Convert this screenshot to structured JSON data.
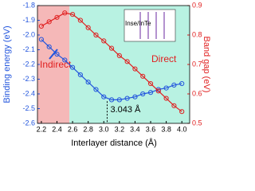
{
  "chart_data": {
    "type": "line",
    "xlabel": "Interlayer distance (Å)",
    "ylabel": "Binding energy (eV)",
    "y2label": "Band gap (eV)",
    "x": [
      2.2,
      2.3,
      2.4,
      2.5,
      2.6,
      2.7,
      2.8,
      2.9,
      3.0,
      3.1,
      3.2,
      3.3,
      3.4,
      3.5,
      3.6,
      3.7,
      3.8,
      3.9,
      4.0
    ],
    "series": [
      {
        "name": "Binding energy",
        "color": "#2255dd",
        "values": [
          -2.03,
          -2.08,
          -2.13,
          -2.17,
          -2.22,
          -2.27,
          -2.32,
          -2.37,
          -2.42,
          -2.44,
          -2.44,
          -2.43,
          -2.42,
          -2.4,
          -2.39,
          -2.37,
          -2.36,
          -2.34,
          -2.33
        ]
      },
      {
        "name": "Band gap",
        "color": "#e02020",
        "axis": "y2",
        "values": [
          0.83,
          0.845,
          0.86,
          0.875,
          0.87,
          0.85,
          0.825,
          0.8,
          0.78,
          0.755,
          0.73,
          0.71,
          0.685,
          0.66,
          0.635,
          0.61,
          0.585,
          0.56,
          0.54
        ]
      }
    ],
    "regions": [
      {
        "name": "Indirect",
        "xlim": [
          2.15,
          2.56
        ],
        "color": "#f5b8b8"
      },
      {
        "name": "Direct",
        "xlim": [
          2.56,
          4.1
        ],
        "color": "#b8f2e2"
      }
    ],
    "annotations": [
      {
        "text": "3.043 Å",
        "x": 3.043,
        "y": -2.45
      }
    ],
    "inset_label": "Inse/InTe",
    "xlim": [
      2.15,
      4.1
    ],
    "xticks": [
      2.2,
      2.4,
      2.6,
      2.8,
      {
        "value": 3,
        "label": "3.0"
      },
      3.2,
      3.4,
      3.6,
      3.8,
      {
        "value": 4,
        "label": "4.0"
      }
    ],
    "ylim": [
      -2.6,
      -1.8
    ],
    "yticks": [
      -1.8,
      -1.9,
      {
        "value": -2,
        "label": "-2.0"
      },
      -2.1,
      -2.2,
      -2.3,
      -2.4,
      -2.5,
      -2.6
    ],
    "y2lim": [
      0.5,
      0.9
    ],
    "y2ticks": [
      0.5,
      0.6,
      0.7,
      0.8,
      0.9
    ]
  }
}
